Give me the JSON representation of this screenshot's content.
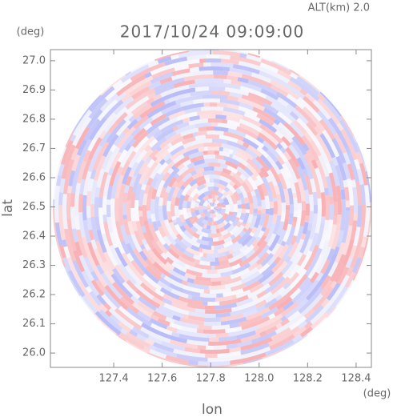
{
  "chart_data": {
    "type": "ppi",
    "title": "2017/10/24 09:09:00",
    "altitude": "ALT(km) 2.0",
    "xlabel": "lon",
    "ylabel": "lat",
    "x_unit": "(deg)",
    "y_unit": "(deg)",
    "xlim": [
      127.139,
      128.463
    ],
    "ylim": [
      25.951,
      27.038
    ],
    "xticks": [
      127.4,
      127.6,
      127.8,
      {
        "value": 128.0,
        "label": "128.0"
      },
      128.2,
      128.4
    ],
    "yticks": [
      {
        "value": 26.0,
        "label": "26.0"
      },
      26.1,
      26.2,
      26.3,
      26.4,
      26.5,
      26.6,
      26.7,
      26.8,
      26.9,
      {
        "value": 27.0,
        "label": "27.0"
      }
    ]
  }
}
